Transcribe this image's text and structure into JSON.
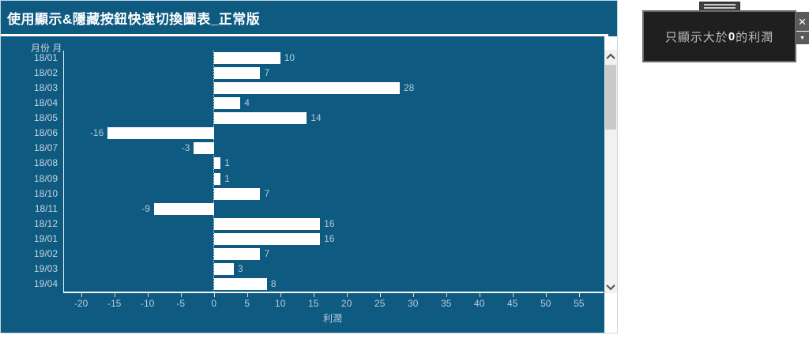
{
  "panel": {
    "title": "使用顯示&隱藏按鈕快速切換圖表_正常版",
    "colors": {
      "background": "#0e5a80",
      "bar": "#ffffff",
      "title_text": "#ffffff",
      "label_text": "#c6d6e0",
      "tick_text": "#b9cdd8"
    }
  },
  "chart_data": {
    "type": "bar",
    "orientation": "horizontal",
    "row_header": "月份 月",
    "categories": [
      "18/01",
      "18/02",
      "18/03",
      "18/04",
      "18/05",
      "18/06",
      "18/07",
      "18/08",
      "18/09",
      "18/10",
      "18/11",
      "18/12",
      "19/01",
      "19/02",
      "19/03",
      "19/04"
    ],
    "values": [
      10,
      7,
      28,
      4,
      14,
      -16,
      -3,
      1,
      1,
      7,
      -9,
      16,
      16,
      7,
      3,
      8
    ],
    "xlabel": "利潤",
    "xticks": [
      -20,
      -15,
      -10,
      -5,
      0,
      5,
      10,
      15,
      20,
      25,
      30,
      35,
      40,
      45,
      50,
      55
    ],
    "xlim": [
      -22.7,
      58.6
    ],
    "zero_line": true,
    "grid": false,
    "legend": null,
    "bar_color": "#ffffff"
  },
  "scrollbar": {
    "orientation": "vertical",
    "thumb_position": "top"
  },
  "tooltip": {
    "text_prefix": "只顯示大於",
    "text_bold": "0",
    "text_suffix": "的利潤",
    "close_label": "×"
  }
}
